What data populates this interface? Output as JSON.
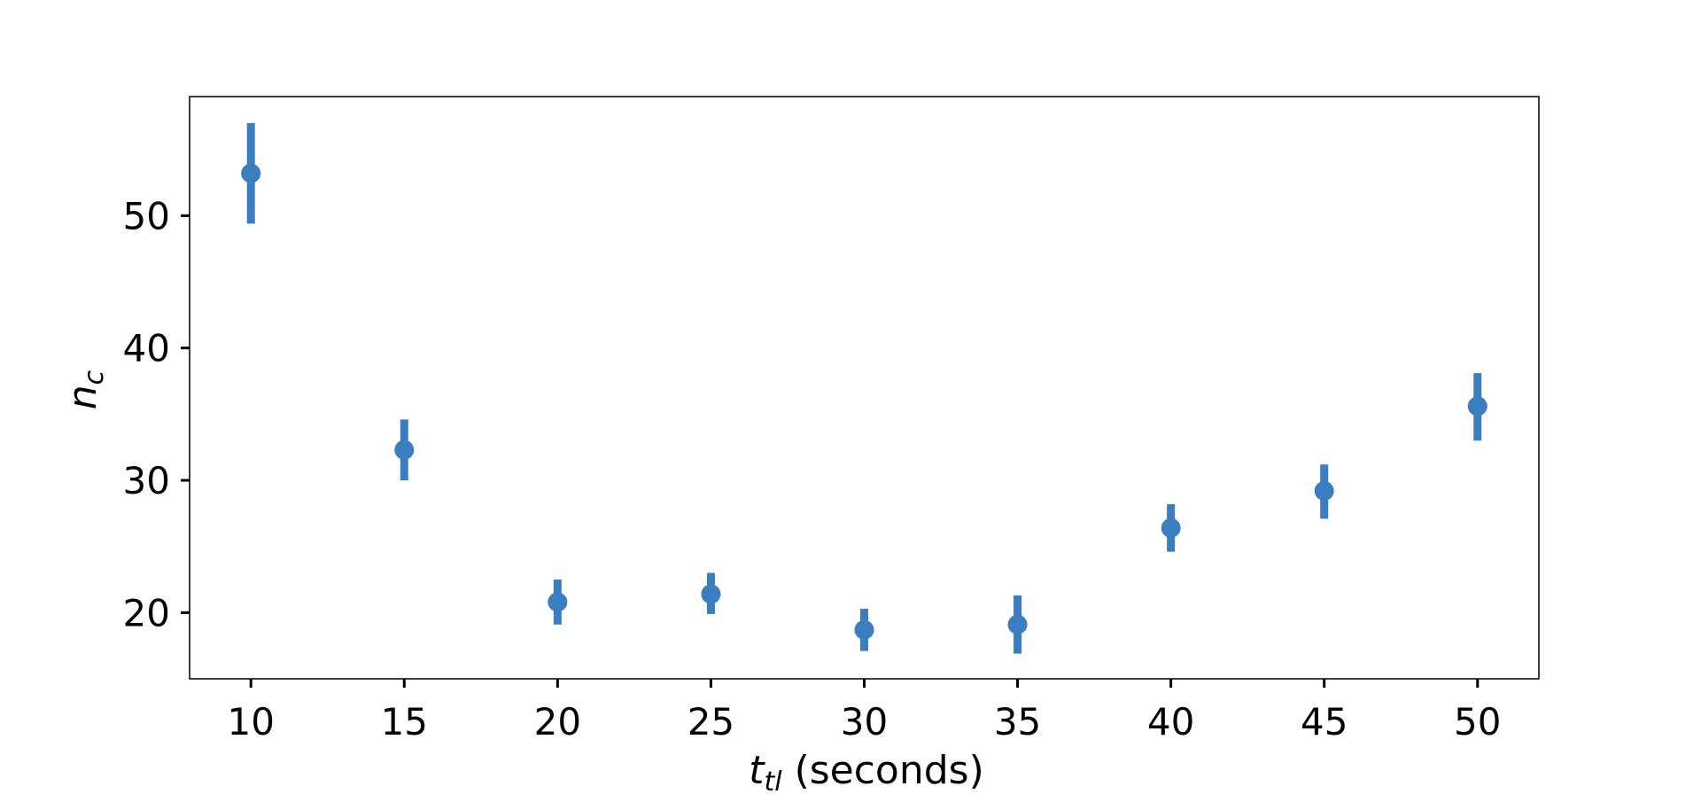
{
  "chart_data": {
    "type": "scatter",
    "style": "errorbar",
    "x": [
      10,
      15,
      20,
      25,
      30,
      35,
      40,
      45,
      50
    ],
    "y": [
      53.2,
      32.3,
      20.8,
      21.4,
      18.7,
      19.1,
      26.4,
      29.2,
      35.6
    ],
    "y_err_low": [
      3.8,
      2.3,
      1.7,
      1.5,
      1.6,
      2.2,
      1.8,
      2.1,
      2.6
    ],
    "y_err_high": [
      3.8,
      2.3,
      1.7,
      1.6,
      1.6,
      2.2,
      1.8,
      2.0,
      2.5
    ],
    "xlim": [
      8,
      52
    ],
    "ylim": [
      15,
      59
    ],
    "xticks": [
      10,
      15,
      20,
      25,
      30,
      35,
      40,
      45,
      50
    ],
    "yticks": [
      20,
      30,
      40,
      50
    ],
    "xlabel": {
      "base": "t",
      "sub": "tl",
      "suffix": " (seconds)"
    },
    "ylabel": {
      "base": "n",
      "sub": "c"
    },
    "title": "",
    "grid": false,
    "legend": "none",
    "color": "#3a7ebf"
  }
}
